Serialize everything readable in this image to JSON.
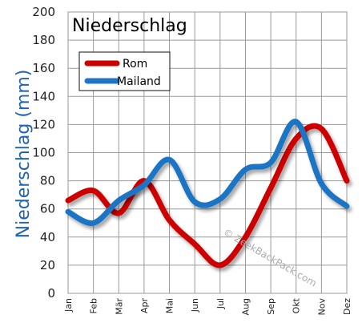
{
  "chart_data": {
    "type": "line",
    "title": "Niederschlag",
    "ylabel": "Niederschlag (mm)",
    "xlabel": "",
    "categories": [
      "Jan",
      "Feb",
      "Mär",
      "Apr",
      "Mai",
      "Jun",
      "Jul",
      "Aug",
      "Sep",
      "Okt",
      "Nov",
      "Dez"
    ],
    "ylim": [
      0,
      200
    ],
    "yticks": [
      0,
      20,
      40,
      60,
      80,
      100,
      120,
      140,
      160,
      180,
      200
    ],
    "grid": true,
    "legend": "top-left",
    "series": [
      {
        "name": "Rom",
        "color": "#cc0000",
        "values": [
          66,
          73,
          57,
          80,
          52,
          35,
          20,
          40,
          75,
          110,
          117,
          80
        ]
      },
      {
        "name": "Mailand",
        "color": "#1f74c4",
        "values": [
          58,
          50,
          66,
          77,
          95,
          65,
          67,
          88,
          93,
          122,
          78,
          62
        ]
      }
    ],
    "watermark": "© ZeekBackPack.com"
  }
}
